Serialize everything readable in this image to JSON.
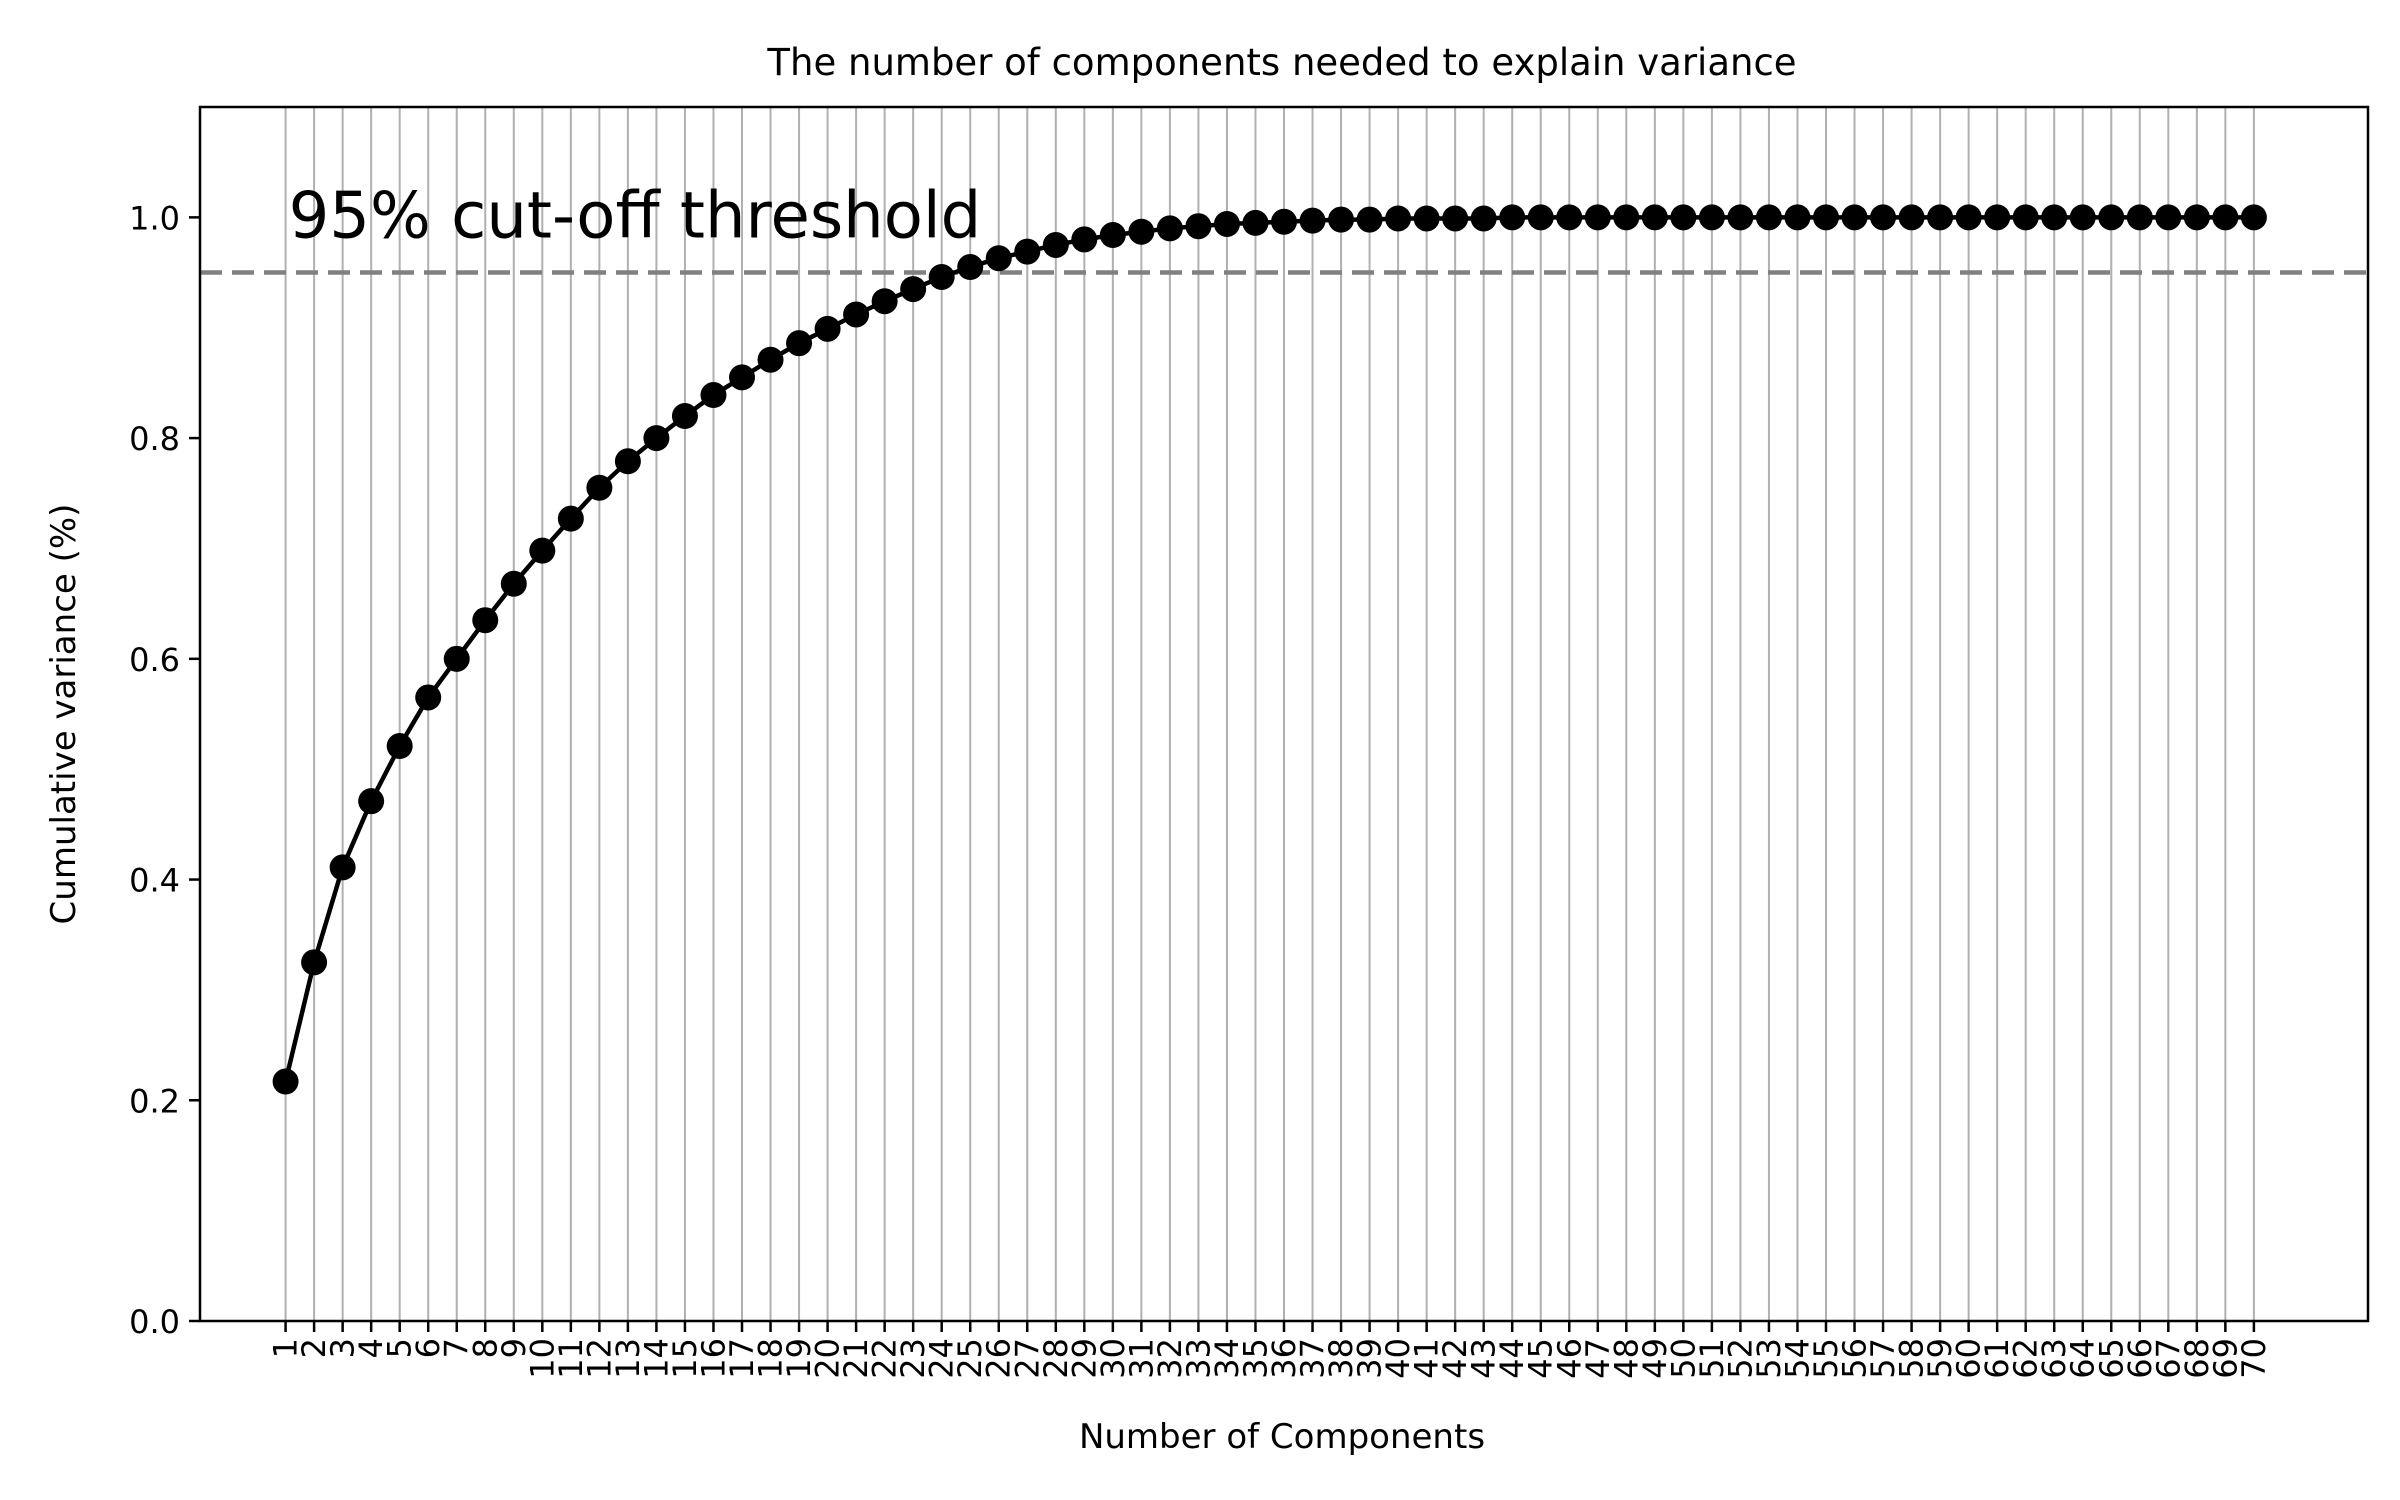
{
  "chart_data": {
    "type": "line",
    "title": "The number of components needed to explain variance",
    "xlabel": "Number of Components",
    "ylabel": "Cumulative variance (%)",
    "xlim": [
      -2,
      74
    ],
    "ylim": [
      0.0,
      1.1
    ],
    "yticks": [
      0.0,
      0.2,
      0.4,
      0.6,
      0.8,
      1.0
    ],
    "ytick_labels": [
      "0.0",
      "0.2",
      "0.4",
      "0.6",
      "0.8",
      "1.0"
    ],
    "x_grid": true,
    "y_grid": false,
    "threshold": {
      "value": 0.95,
      "style": "dashed",
      "color": "#808080"
    },
    "annotation": {
      "text": "95% cut-off threshold",
      "x": 1,
      "y": 1.0
    },
    "x": [
      1,
      2,
      3,
      4,
      5,
      6,
      7,
      8,
      9,
      10,
      11,
      12,
      13,
      14,
      15,
      16,
      17,
      18,
      19,
      20,
      21,
      22,
      23,
      24,
      25,
      26,
      27,
      28,
      29,
      30,
      31,
      32,
      33,
      34,
      35,
      36,
      37,
      38,
      39,
      40,
      41,
      42,
      43,
      44,
      45,
      46,
      47,
      48,
      49,
      50,
      51,
      52,
      53,
      54,
      55,
      56,
      57,
      58,
      59,
      60,
      61,
      62,
      63,
      64,
      65,
      66,
      67,
      68,
      69,
      70
    ],
    "xtick_labels": [
      "1",
      "2",
      "3",
      "4",
      "5",
      "6",
      "7",
      "8",
      "9",
      "10",
      "11",
      "12",
      "13",
      "14",
      "15",
      "16",
      "17",
      "18",
      "19",
      "20",
      "21",
      "22",
      "23",
      "24",
      "25",
      "26",
      "27",
      "28",
      "29",
      "30",
      "31",
      "32",
      "33",
      "34",
      "35",
      "36",
      "37",
      "38",
      "39",
      "40",
      "41",
      "42",
      "43",
      "44",
      "45",
      "46",
      "47",
      "48",
      "49",
      "50",
      "51",
      "52",
      "53",
      "54",
      "55",
      "56",
      "57",
      "58",
      "59",
      "60",
      "61",
      "62",
      "63",
      "64",
      "65",
      "66",
      "67",
      "68",
      "69",
      "70"
    ],
    "series": [
      {
        "color": "#000000",
        "marker": "circle",
        "values": [
          0.217,
          0.325,
          0.411,
          0.471,
          0.521,
          0.565,
          0.6,
          0.635,
          0.668,
          0.698,
          0.727,
          0.755,
          0.779,
          0.8,
          0.82,
          0.839,
          0.855,
          0.871,
          0.886,
          0.899,
          0.912,
          0.924,
          0.935,
          0.946,
          0.955,
          0.963,
          0.969,
          0.975,
          0.98,
          0.984,
          0.987,
          0.99,
          0.992,
          0.994,
          0.995,
          0.996,
          0.997,
          0.998,
          0.998,
          0.999,
          0.999,
          0.999,
          0.999,
          1.0,
          1.0,
          1.0,
          1.0,
          1.0,
          1.0,
          1.0,
          1.0,
          1.0,
          1.0,
          1.0,
          1.0,
          1.0,
          1.0,
          1.0,
          1.0,
          1.0,
          1.0,
          1.0,
          1.0,
          1.0,
          1.0,
          1.0,
          1.0,
          1.0,
          1.0,
          1.0
        ]
      }
    ]
  }
}
